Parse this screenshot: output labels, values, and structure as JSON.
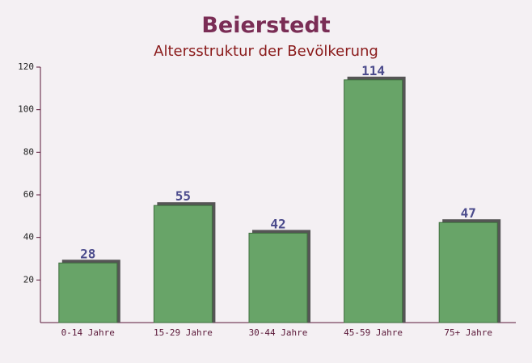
{
  "chart_data": {
    "type": "bar",
    "title": "Beierstedt",
    "subtitle": "Altersstruktur der Bevölkerung",
    "categories": [
      "0-14 Jahre",
      "15-29 Jahre",
      "30-44 Jahre",
      "45-59 Jahre",
      "75+ Jahre"
    ],
    "values": [
      28,
      55,
      42,
      114,
      47
    ],
    "color": "#68a468",
    "ylim": [
      0,
      120
    ],
    "yticks": [
      20,
      40,
      60,
      80,
      100,
      120
    ]
  }
}
